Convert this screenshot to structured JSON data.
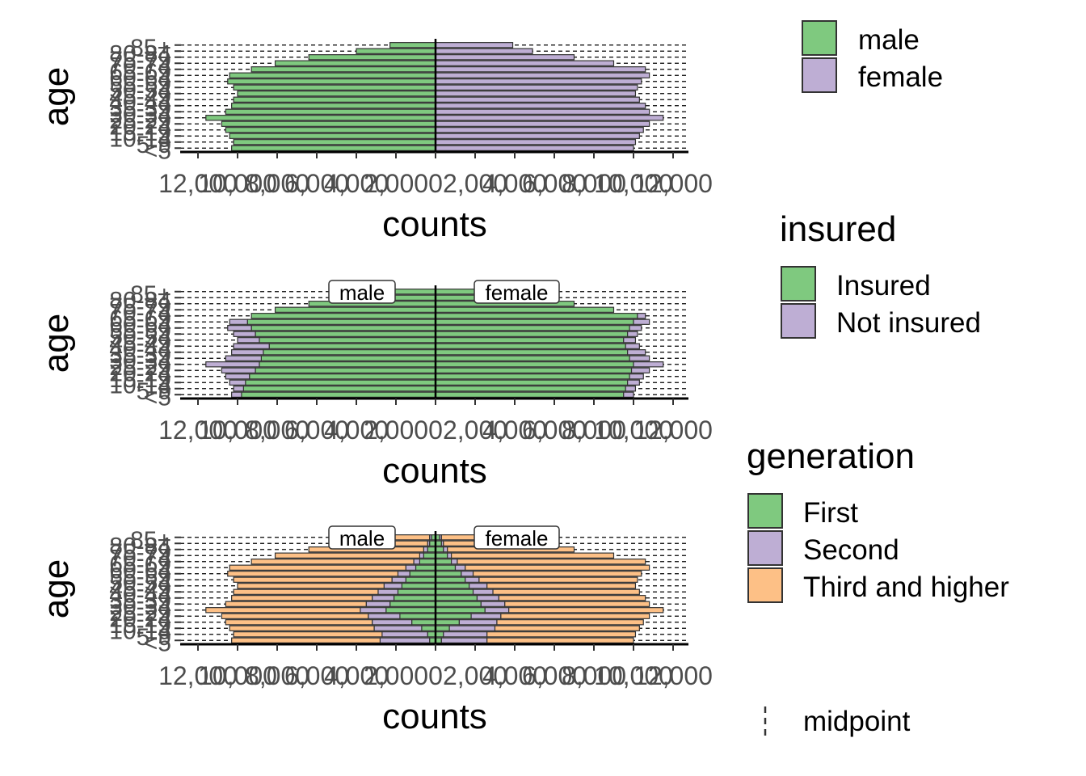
{
  "age_groups": [
    "<5",
    "5-9",
    "10-14",
    "15-19",
    "20-24",
    "25-29",
    "30-34",
    "35-39",
    "40-44",
    "45-49",
    "50-54",
    "55-59",
    "60-64",
    "65-69",
    "70-74",
    "75-79",
    "80-84",
    "85+"
  ],
  "colors": {
    "green": "#7FC97F",
    "purple": "#BEAED4",
    "orange": "#FDC086",
    "bar_outline": "#333333",
    "axis": "#000000",
    "tick_label": "#4D4D4D"
  },
  "legend_sex": {
    "title": "",
    "items": [
      {
        "label": "male",
        "color": "#7FC97F"
      },
      {
        "label": "female",
        "color": "#BEAED4"
      }
    ]
  },
  "legend_insured": {
    "title": "insured",
    "items": [
      {
        "label": "Insured",
        "color": "#7FC97F"
      },
      {
        "label": "Not insured",
        "color": "#BEAED4"
      }
    ]
  },
  "legend_generation": {
    "title": "generation",
    "items": [
      {
        "label": "First",
        "color": "#7FC97F"
      },
      {
        "label": "Second",
        "color": "#BEAED4"
      },
      {
        "label": "Third and higher",
        "color": "#FDC086"
      }
    ]
  },
  "legend_midpoint": {
    "label": "midpoint",
    "icon": "dashed-line-icon"
  },
  "chart_data": [
    {
      "type": "bar",
      "orientation": "horizontal",
      "title": "",
      "xlabel": "counts",
      "ylabel": "age",
      "xlim": [
        -12000,
        12000
      ],
      "x_ticks": [
        -12000,
        -10000,
        -8000,
        -6000,
        -4000,
        -2000,
        0,
        2000,
        4000,
        6000,
        8000,
        10000,
        12000
      ],
      "x_tick_labels": [
        "12,000",
        "10,000",
        "8,000",
        "6,000",
        "4,000",
        "2,000",
        "0",
        "2,000",
        "4,000",
        "6,000",
        "8,000",
        "10,000",
        "12,000"
      ],
      "categories": [
        "<5",
        "5-9",
        "10-14",
        "15-19",
        "20-24",
        "25-29",
        "30-34",
        "35-39",
        "40-44",
        "45-49",
        "50-54",
        "55-59",
        "60-64",
        "65-69",
        "70-74",
        "75-79",
        "80-84",
        "85+"
      ],
      "facet_labels": [],
      "grid": "dashed horizontal lines",
      "series": [
        {
          "name": "male",
          "side": "left",
          "segments": [
            {
              "fill": "#7FC97F",
              "values": [
                10300,
                10200,
                10400,
                10600,
                10800,
                11600,
                10600,
                10300,
                10200,
                10000,
                10200,
                10500,
                10400,
                9300,
                8100,
                6400,
                4000,
                2300
              ]
            }
          ]
        },
        {
          "name": "female",
          "side": "right",
          "segments": [
            {
              "fill": "#BEAED4",
              "values": [
                10000,
                10100,
                10300,
                10500,
                10800,
                11500,
                10800,
                10600,
                10300,
                10100,
                10200,
                10400,
                10800,
                10600,
                9000,
                7000,
                4900,
                3900
              ]
            }
          ]
        }
      ]
    },
    {
      "type": "bar",
      "orientation": "horizontal",
      "title": "",
      "xlabel": "counts",
      "ylabel": "age",
      "xlim": [
        -12000,
        12000
      ],
      "x_ticks": [
        -12000,
        -10000,
        -8000,
        -6000,
        -4000,
        -2000,
        0,
        2000,
        4000,
        6000,
        8000,
        10000,
        12000
      ],
      "x_tick_labels": [
        "12,000",
        "10,000",
        "8,000",
        "6,000",
        "4,000",
        "2,000",
        "0",
        "2,000",
        "4,000",
        "6,000",
        "8,000",
        "10,000",
        "12,000"
      ],
      "categories": [
        "<5",
        "5-9",
        "10-14",
        "15-19",
        "20-24",
        "25-29",
        "30-34",
        "35-39",
        "40-44",
        "45-49",
        "50-54",
        "55-59",
        "60-64",
        "65-69",
        "70-74",
        "75-79",
        "80-84",
        "85+"
      ],
      "facet_labels": [
        "male",
        "female"
      ],
      "grid": "dashed horizontal lines",
      "series": [
        {
          "name": "male",
          "side": "left",
          "segments": [
            {
              "fill": "#7FC97F",
              "values": [
                9800,
                9700,
                9600,
                9400,
                9100,
                8900,
                8800,
                8700,
                8400,
                8900,
                9100,
                9300,
                9500,
                9300,
                8100,
                6400,
                4000,
                2300
              ]
            },
            {
              "fill": "#BEAED4",
              "values": [
                500,
                500,
                800,
                1200,
                1700,
                2700,
                1800,
                1600,
                1800,
                1100,
                1100,
                1200,
                900,
                0,
                0,
                0,
                0,
                0
              ]
            }
          ]
        },
        {
          "name": "female",
          "side": "right",
          "segments": [
            {
              "fill": "#7FC97F",
              "values": [
                9500,
                9600,
                9700,
                9800,
                9900,
                10000,
                9800,
                9700,
                9600,
                9500,
                9700,
                9800,
                10000,
                10200,
                9000,
                7000,
                4900,
                3900
              ]
            },
            {
              "fill": "#BEAED4",
              "values": [
                500,
                500,
                600,
                700,
                900,
                1500,
                1000,
                900,
                700,
                600,
                500,
                600,
                800,
                400,
                0,
                0,
                0,
                0
              ]
            }
          ]
        }
      ]
    },
    {
      "type": "bar",
      "orientation": "horizontal",
      "title": "",
      "xlabel": "counts",
      "ylabel": "age",
      "xlim": [
        -12000,
        12000
      ],
      "x_ticks": [
        -12000,
        -10000,
        -8000,
        -6000,
        -4000,
        -2000,
        0,
        2000,
        4000,
        6000,
        8000,
        10000,
        12000
      ],
      "x_tick_labels": [
        "12,000",
        "10,000",
        "8,000",
        "6,000",
        "4,000",
        "2,000",
        "0",
        "2,000",
        "4,000",
        "6,000",
        "8,000",
        "10,000",
        "12,000"
      ],
      "categories": [
        "<5",
        "5-9",
        "10-14",
        "15-19",
        "20-24",
        "25-29",
        "30-34",
        "35-39",
        "40-44",
        "45-49",
        "50-54",
        "55-59",
        "60-64",
        "65-69",
        "70-74",
        "75-79",
        "80-84",
        "85+"
      ],
      "facet_labels": [
        "male",
        "female"
      ],
      "grid": "dashed horizontal lines",
      "series": [
        {
          "name": "male",
          "side": "left",
          "segments": [
            {
              "fill": "#7FC97F",
              "values": [
                300,
                400,
                700,
                1200,
                1800,
                2500,
                2300,
                2100,
                1900,
                1700,
                1500,
                1300,
                1000,
                800,
                600,
                400,
                300,
                200
              ]
            },
            {
              "fill": "#BEAED4",
              "values": [
                2500,
                2300,
                2400,
                2000,
                1600,
                1300,
                1200,
                1100,
                1000,
                900,
                700,
                600,
                500,
                300,
                200,
                200,
                100,
                100
              ]
            },
            {
              "fill": "#FDC086",
              "values": [
                7500,
                7500,
                7300,
                7400,
                7400,
                7800,
                7100,
                7100,
                7300,
                7400,
                8000,
                8600,
                8900,
                8200,
                7300,
                5800,
                3600,
                2000
              ]
            }
          ]
        },
        {
          "name": "female",
          "side": "right",
          "segments": [
            {
              "fill": "#7FC97F",
              "values": [
                300,
                400,
                700,
                1200,
                1800,
                2500,
                2300,
                2100,
                1900,
                1700,
                1500,
                1300,
                1000,
                800,
                600,
                400,
                300,
                200
              ]
            },
            {
              "fill": "#BEAED4",
              "values": [
                2300,
                2200,
                2300,
                1900,
                1500,
                1200,
                1200,
                1100,
                1000,
                900,
                700,
                600,
                500,
                300,
                200,
                200,
                100,
                100
              ]
            },
            {
              "fill": "#FDC086",
              "values": [
                7400,
                7500,
                7300,
                7400,
                7500,
                7800,
                7300,
                7400,
                7400,
                7500,
                8000,
                8500,
                9300,
                9500,
                8200,
                6400,
                4500,
                3600
              ]
            }
          ]
        }
      ]
    }
  ]
}
